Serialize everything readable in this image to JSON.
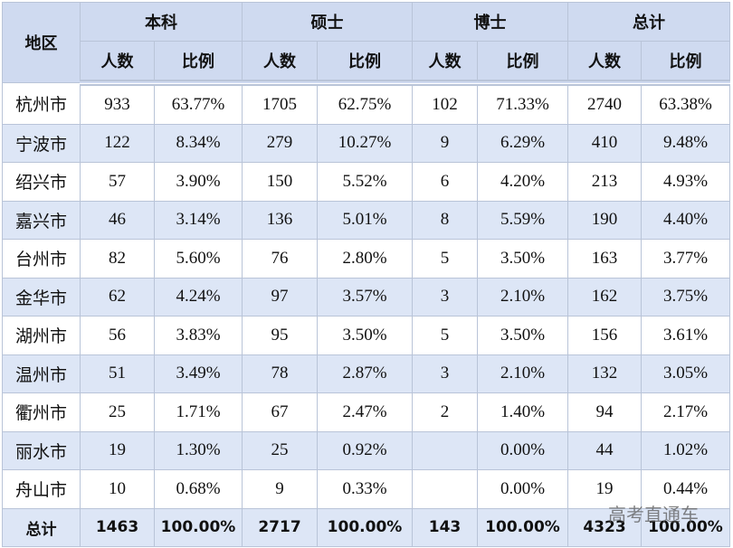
{
  "table": {
    "header": [
      "地区",
      "本科",
      "硕士",
      "博士",
      "总计"
    ],
    "subheader": [
      "人数",
      "比例",
      "人数",
      "比例",
      "人数",
      "比例",
      "人数",
      "比例"
    ],
    "rows": [
      [
        "杭州市",
        933,
        "63.77%",
        1705,
        "62.75%",
        102,
        "71.33%",
        2740,
        "63.38%"
      ],
      [
        "宁波市",
        122,
        "8.34%",
        279,
        "10.27%",
        9,
        "6.29%",
        410,
        "9.48%"
      ],
      [
        "绍兴市",
        57,
        "3.90%",
        150,
        "5.52%",
        6,
        "4.20%",
        213,
        "4.93%"
      ],
      [
        "嘉兴市",
        46,
        "3.14%",
        136,
        "5.01%",
        8,
        "5.59%",
        190,
        "4.40%"
      ],
      [
        "台州市",
        82,
        "5.60%",
        76,
        "2.80%",
        5,
        "3.50%",
        163,
        "3.77%"
      ],
      [
        "金华市",
        62,
        "4.24%",
        97,
        "3.57%",
        3,
        "2.10%",
        162,
        "3.75%"
      ],
      [
        "湖州市",
        56,
        "3.83%",
        95,
        "3.50%",
        5,
        "3.50%",
        156,
        "3.61%"
      ],
      [
        "温州市",
        51,
        "3.49%",
        78,
        "2.87%",
        3,
        "2.10%",
        132,
        "3.05%"
      ],
      [
        "衢州市",
        25,
        "1.71%",
        67,
        "2.47%",
        2,
        "1.40%",
        94,
        "2.17%"
      ],
      [
        "丽水市",
        19,
        "1.30%",
        25,
        "0.92%",
        null,
        "0.00%",
        44,
        "1.02%"
      ],
      [
        "舟山市",
        10,
        "0.68%",
        9,
        "0.33%",
        null,
        "0.00%",
        19,
        "0.44%"
      ],
      [
        "总计",
        1463,
        "100.00%",
        2717,
        "100.00%",
        143,
        "100.00%",
        4323,
        "100.00%"
      ]
    ]
  },
  "watermark": "高考直通车"
}
